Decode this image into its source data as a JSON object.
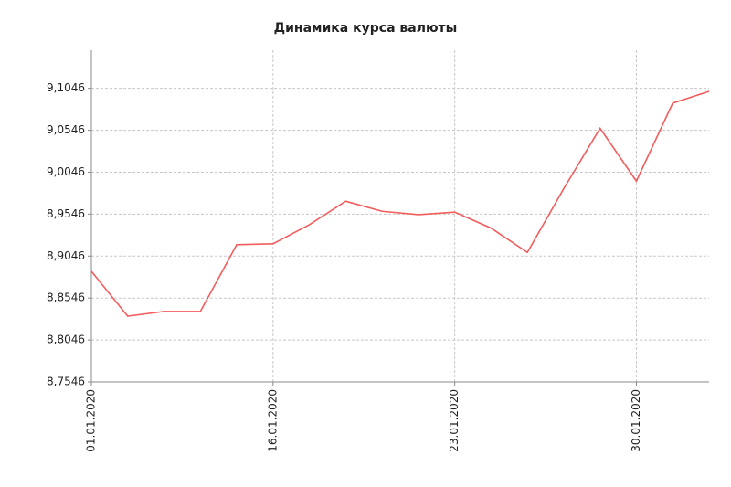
{
  "chart_data": {
    "type": "line",
    "title": "Динамика курса валюты",
    "categories": [
      "01.01.2020",
      null,
      null,
      null,
      null,
      "16.01.2020",
      null,
      null,
      null,
      null,
      "23.01.2020",
      null,
      null,
      null,
      null,
      "30.01.2020",
      null,
      null
    ],
    "values": [
      8.8866,
      8.833,
      8.8386,
      8.8386,
      8.9182,
      8.9193,
      8.942,
      8.97,
      8.958,
      8.954,
      8.957,
      8.938,
      8.909,
      8.985,
      9.057,
      8.994,
      9.087,
      9.101
    ],
    "color": "#f25c5c",
    "ylim": [
      8.7546,
      9.15
    ],
    "yticks": [
      {
        "value": 8.7546,
        "label": "8,7546"
      },
      {
        "value": 8.8046,
        "label": "8,8046"
      },
      {
        "value": 8.8546,
        "label": "8,8546"
      },
      {
        "value": 8.9046,
        "label": "8,9046"
      },
      {
        "value": 8.9546,
        "label": "8,9546"
      },
      {
        "value": 9.0046,
        "label": "9,0046"
      },
      {
        "value": 9.0546,
        "label": "9,0546"
      },
      {
        "value": 9.1046,
        "label": "9,1046"
      }
    ],
    "grid": true
  }
}
